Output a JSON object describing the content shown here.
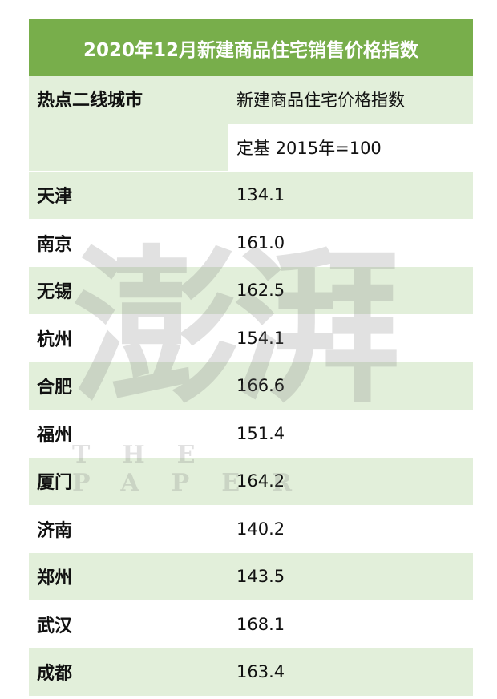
{
  "title": "2020年12月新建商品住宅销售价格指数",
  "header": {
    "city_col": "热点二线城市",
    "index_col": "新建商品住宅价格指数",
    "base_note": "定基 2015年=100"
  },
  "rows": [
    {
      "city": "天津",
      "value": "134.1"
    },
    {
      "city": "南京",
      "value": "161.0"
    },
    {
      "city": "无锡",
      "value": "162.5"
    },
    {
      "city": "杭州",
      "value": "154.1"
    },
    {
      "city": "合肥",
      "value": "166.6"
    },
    {
      "city": "福州",
      "value": "151.4"
    },
    {
      "city": "厦门",
      "value": "164.2"
    },
    {
      "city": "济南",
      "value": "140.2"
    },
    {
      "city": "郑州",
      "value": "143.5"
    },
    {
      "city": "武汉",
      "value": "168.1"
    },
    {
      "city": "成都",
      "value": "163.4"
    }
  ],
  "watermark": {
    "cn": "澎湃",
    "en": "THE PAPER"
  },
  "colors": {
    "title_bg": "#78ae4b",
    "row_green": "#e2efda",
    "row_white": "#ffffff"
  }
}
